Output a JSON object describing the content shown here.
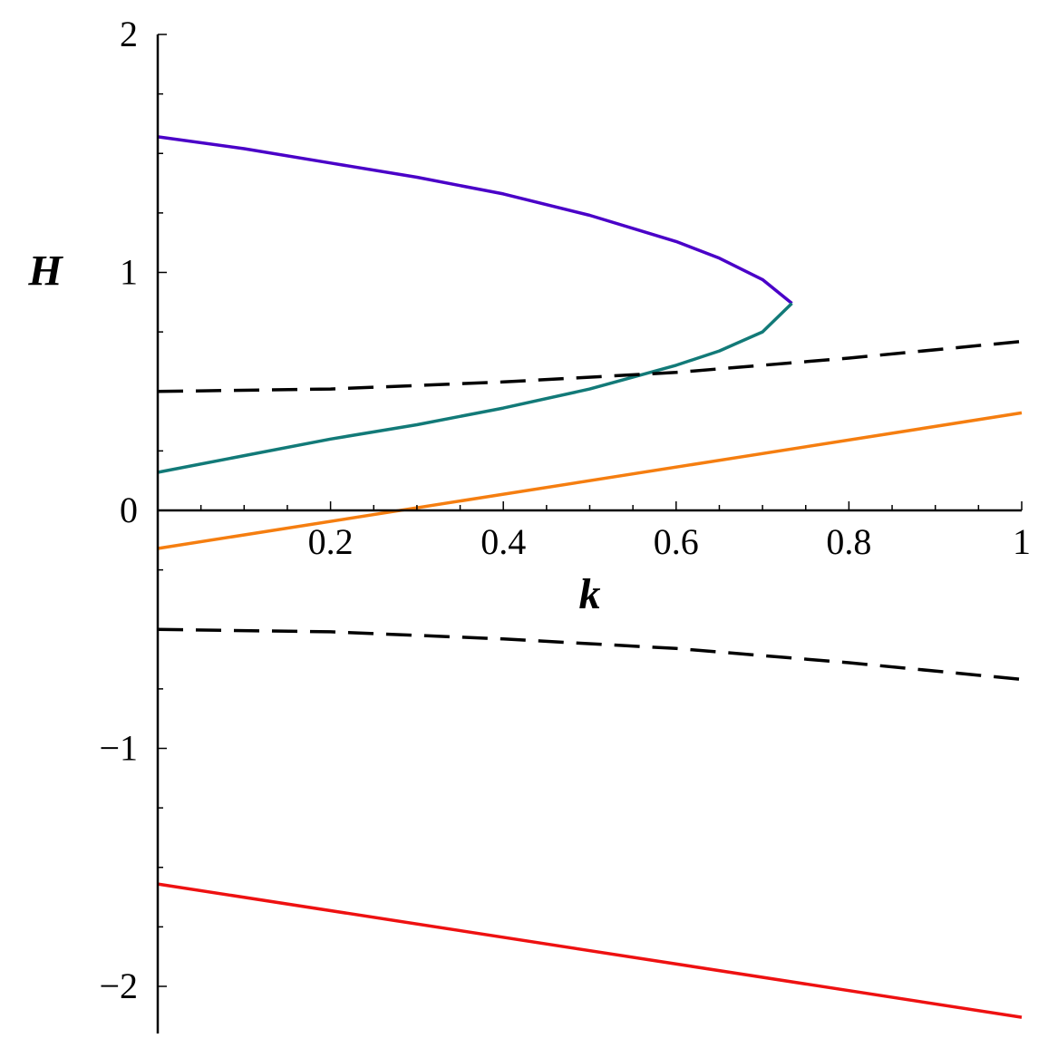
{
  "chart_data": {
    "type": "line",
    "xlabel": "k",
    "ylabel": "H",
    "xlim": [
      0,
      1
    ],
    "ylim": [
      -2.2,
      2
    ],
    "x_ticks": [
      {
        "value": 0.2,
        "label": "0.2"
      },
      {
        "value": 0.4,
        "label": "0.4"
      },
      {
        "value": 0.6,
        "label": "0.6"
      },
      {
        "value": 0.8,
        "label": "0.8"
      },
      {
        "value": 1,
        "label": "1"
      }
    ],
    "y_ticks": [
      {
        "value": 2,
        "label": "2"
      },
      {
        "value": 1,
        "label": "1"
      },
      {
        "value": 0,
        "label": "0"
      },
      {
        "value": -1,
        "label": "−1"
      },
      {
        "value": -2,
        "label": "−2"
      }
    ],
    "grid": false,
    "legend": "none",
    "series": [
      {
        "color": "#4a00c8",
        "style": "solid",
        "points": [
          [
            0,
            1.57
          ],
          [
            0.1,
            1.52
          ],
          [
            0.2,
            1.46
          ],
          [
            0.3,
            1.4
          ],
          [
            0.4,
            1.33
          ],
          [
            0.5,
            1.24
          ],
          [
            0.6,
            1.13
          ],
          [
            0.65,
            1.06
          ],
          [
            0.7,
            0.97
          ],
          [
            0.734,
            0.87
          ]
        ]
      },
      {
        "color": "#127a78",
        "style": "solid",
        "points": [
          [
            0,
            0.16
          ],
          [
            0.1,
            0.23
          ],
          [
            0.2,
            0.3
          ],
          [
            0.3,
            0.36
          ],
          [
            0.4,
            0.43
          ],
          [
            0.5,
            0.51
          ],
          [
            0.6,
            0.61
          ],
          [
            0.65,
            0.67
          ],
          [
            0.7,
            0.75
          ],
          [
            0.734,
            0.87
          ]
        ]
      },
      {
        "color": "#000000",
        "style": "dashed",
        "points": [
          [
            0,
            0.5
          ],
          [
            0.2,
            0.51
          ],
          [
            0.4,
            0.54
          ],
          [
            0.6,
            0.58
          ],
          [
            0.8,
            0.64
          ],
          [
            1,
            0.71
          ]
        ]
      },
      {
        "color": "#000000",
        "style": "dashed",
        "points": [
          [
            0,
            -0.5
          ],
          [
            0.2,
            -0.51
          ],
          [
            0.4,
            -0.54
          ],
          [
            0.6,
            -0.58
          ],
          [
            0.8,
            -0.64
          ],
          [
            1,
            -0.71
          ]
        ]
      },
      {
        "color": "#f57e10",
        "style": "solid",
        "points": [
          [
            0,
            -0.16
          ],
          [
            1,
            0.41
          ]
        ]
      },
      {
        "color": "#ee1111",
        "style": "solid",
        "points": [
          [
            0,
            -1.57
          ],
          [
            1,
            -2.13
          ]
        ]
      }
    ]
  }
}
